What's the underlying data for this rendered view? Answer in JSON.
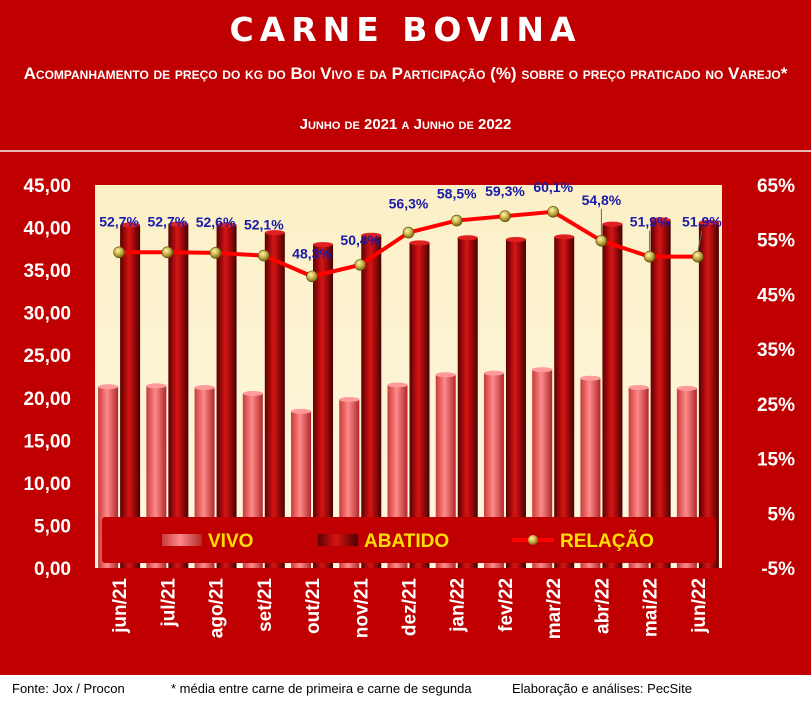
{
  "header": {
    "title": "CARNE BOVINA",
    "subtitle": "Acompanhamento de preço do kg do Boi Vivo e da Participação (%) sobre o preço praticado no Varejo*",
    "period": "Junho de 2021 a Junho de 2022"
  },
  "footer": {
    "source": "Fonte: Jox / Procon",
    "note": "* média entre carne de primeira e carne de segunda",
    "credit": "Elaboração e análises: PecSite"
  },
  "colors": {
    "frame": "#c00000",
    "plot_bg": "#fdf3cf",
    "vivo": "#f06060",
    "abatido": "#a80000",
    "relacao_line": "#ff0000",
    "relacao_marker": "#c9b046",
    "relacao_label": "#1a1aa8",
    "axis_text": "#ffffff"
  },
  "chart_data": {
    "type": "bar",
    "categories": [
      "jun/21",
      "jul/21",
      "ago/21",
      "set/21",
      "out/21",
      "nov/21",
      "dez/21",
      "jan/22",
      "fev/22",
      "mar/22",
      "abr/22",
      "mai/22",
      "jun/22"
    ],
    "series": [
      {
        "name": "VIVO",
        "type": "bar",
        "axis": "left",
        "values": [
          21.3,
          21.4,
          21.2,
          20.5,
          18.4,
          19.8,
          21.5,
          22.7,
          22.9,
          23.3,
          22.3,
          21.2,
          21.1
        ]
      },
      {
        "name": "ABATIDO",
        "type": "bar",
        "axis": "left",
        "values": [
          40.3,
          40.4,
          40.3,
          39.4,
          38.0,
          39.1,
          38.2,
          38.8,
          38.6,
          38.9,
          40.4,
          40.9,
          40.6
        ]
      },
      {
        "name": "RELAÇÃO",
        "type": "line",
        "axis": "right",
        "unit": "%",
        "values": [
          52.7,
          52.7,
          52.6,
          52.1,
          48.3,
          50.4,
          56.3,
          58.5,
          59.3,
          60.1,
          54.8,
          51.9,
          51.9
        ],
        "labels": [
          "52,7%",
          "52,7%",
          "52,6%",
          "52,1%",
          "48,3%",
          "50,4%",
          "56,3%",
          "58,5%",
          "59,3%",
          "60,1%",
          "54,8%",
          "51,9%",
          "51,9%"
        ]
      }
    ],
    "y_left": {
      "min": 0,
      "max": 45,
      "ticks": [
        "0,00",
        "5,00",
        "10,00",
        "15,00",
        "20,00",
        "25,00",
        "30,00",
        "35,00",
        "40,00",
        "45,00"
      ]
    },
    "y_right": {
      "min": -5,
      "max": 65,
      "ticks": [
        "-5%",
        "5%",
        "15%",
        "25%",
        "35%",
        "45%",
        "55%",
        "65%"
      ]
    },
    "legend": [
      "VIVO",
      "ABATIDO",
      "RELAÇÃO"
    ],
    "legend_position": "bottom-inside",
    "grid": false
  }
}
